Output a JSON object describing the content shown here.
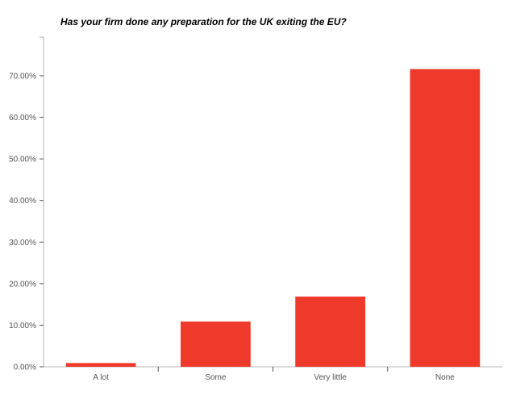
{
  "chart_data": {
    "type": "bar",
    "title": "Has your firm done any preparation for the UK exiting the EU?",
    "categories": [
      "A lot",
      "Some",
      "Very little",
      "None"
    ],
    "values": [
      0.9,
      10.9,
      16.9,
      71.6
    ],
    "ylim": [
      0,
      70
    ],
    "yticks": [
      0,
      10,
      20,
      30,
      40,
      50,
      60,
      70
    ],
    "ytick_labels": [
      "0.00%",
      "10.00%",
      "20.00%",
      "30.00%",
      "40.00%",
      "50.00%",
      "60.00%",
      "70.00%"
    ],
    "xlabel": "",
    "ylabel": "",
    "grid": false,
    "bar_color": "#ef3a2b",
    "axis_color": "#b3b3b3",
    "tick_color": "#555555"
  }
}
